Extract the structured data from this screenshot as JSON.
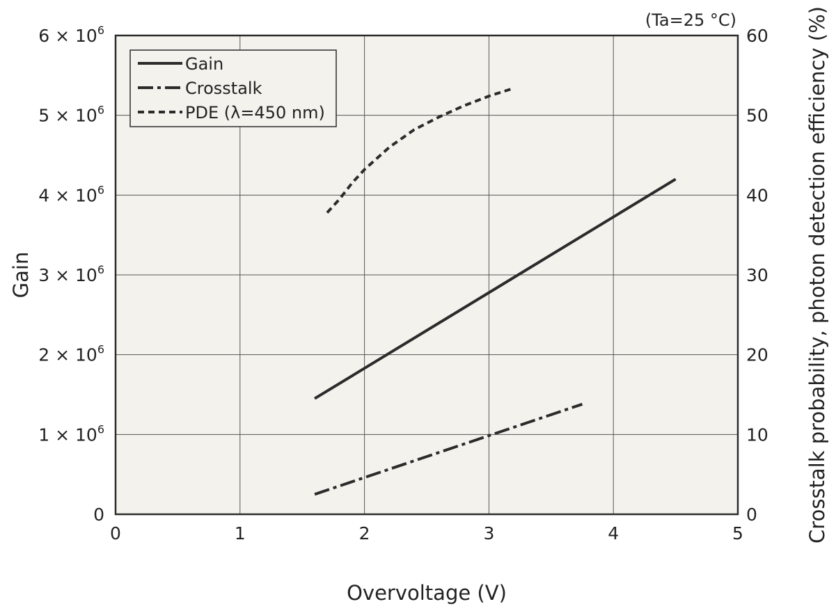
{
  "chart_data": {
    "type": "line",
    "title": "",
    "note": "(Ta=25 °C)",
    "xlabel": "Overvoltage (V)",
    "ylabel": "Gain",
    "y2label": "Crosstalk probability, photon detection efficiency (%)",
    "xlim": [
      0,
      5
    ],
    "ylim": [
      0,
      6000000
    ],
    "y2lim": [
      0,
      60
    ],
    "x_ticks": [
      "0",
      "1",
      "2",
      "3",
      "4",
      "5"
    ],
    "y_ticks": [
      {
        "coef": "0",
        "exp": ""
      },
      {
        "coef": "1 × 10",
        "exp": "6"
      },
      {
        "coef": "2 × 10",
        "exp": "6"
      },
      {
        "coef": "3 × 10",
        "exp": "6"
      },
      {
        "coef": "4 × 10",
        "exp": "6"
      },
      {
        "coef": "5 × 10",
        "exp": "6"
      },
      {
        "coef": "6 × 10",
        "exp": "6"
      }
    ],
    "y2_ticks": [
      "0",
      "10",
      "20",
      "30",
      "40",
      "50",
      "60"
    ],
    "grid": true,
    "legend_position": "top-left",
    "plot_background": "#f4f2ed",
    "line_color": "#2b2b2b",
    "series": [
      {
        "name": "Gain",
        "axis": "left",
        "style": "solid",
        "x": [
          1.6,
          4.5
        ],
        "y": [
          1450000,
          4200000
        ]
      },
      {
        "name": "Crosstalk",
        "axis": "right",
        "style": "dashdot",
        "x": [
          1.6,
          3.75
        ],
        "y": [
          2.5,
          13.8
        ]
      },
      {
        "name": "PDE (λ=450 nm)",
        "axis": "right",
        "style": "dashed",
        "x": [
          1.7,
          1.8,
          1.9,
          2.0,
          2.2,
          2.4,
          2.6,
          2.8,
          3.0,
          3.2
        ],
        "y": [
          37.8,
          39.5,
          41.5,
          43.2,
          46.0,
          48.2,
          49.8,
          51.2,
          52.4,
          53.4
        ]
      }
    ]
  }
}
